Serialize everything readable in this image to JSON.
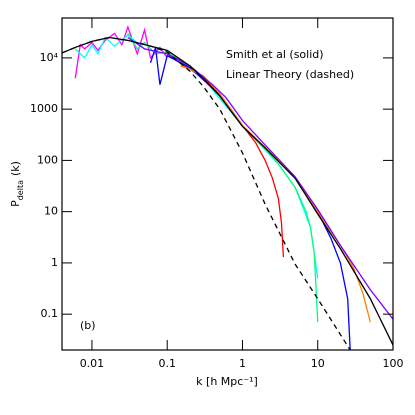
{
  "chart_data": {
    "type": "line",
    "x_label": "k [h Mpc⁻¹]",
    "y_label": "P",
    "y_label_sub": "delta",
    "y_label_suffix": "(k)",
    "annotations": [
      "Smith et al (solid)",
      "Linear Theory (dashed)",
      "(b)"
    ],
    "log_x": true,
    "log_y": true,
    "xlim": [
      0.004,
      100
    ],
    "ylim": [
      0.02,
      60000
    ],
    "xticks": [
      0.01,
      0.1,
      1,
      10,
      100
    ],
    "yticks": [
      0.1,
      1,
      10,
      100,
      1000,
      {
        "value": 10000,
        "label": "10⁴"
      }
    ],
    "series": [
      {
        "color": "#ff00ff",
        "x": [
          0.006,
          0.007,
          0.008,
          0.01,
          0.012,
          0.015,
          0.02,
          0.025,
          0.03,
          0.04,
          0.05,
          0.06,
          0.08,
          0.1
        ],
        "values": [
          4000,
          18000,
          15000,
          20000,
          14000,
          22000,
          30000,
          18000,
          40000,
          12000,
          35000,
          10000,
          16000,
          10000
        ]
      },
      {
        "color": "#00ffff",
        "x": [
          0.006,
          0.008,
          0.01,
          0.012,
          0.015,
          0.02,
          0.03,
          0.05,
          0.1,
          0.3,
          1,
          3,
          5,
          8,
          10
        ],
        "values": [
          15000,
          10000,
          18000,
          12000,
          25000,
          17000,
          28000,
          15000,
          12000,
          4000,
          470,
          85,
          30,
          5,
          0.5
        ]
      },
      {
        "color": "#00ff80",
        "x": [
          0.03,
          0.04,
          0.05,
          0.07,
          0.1,
          0.2,
          0.3,
          0.5,
          1,
          2,
          3,
          5,
          7,
          8,
          9,
          10
        ],
        "values": [
          30000,
          15000,
          20000,
          12000,
          13000,
          6500,
          4000,
          1900,
          470,
          170,
          85,
          30,
          10,
          5,
          1.5,
          0.07
        ]
      },
      {
        "color": "#ff0000",
        "x": [
          0.1,
          0.13,
          0.2,
          0.3,
          0.5,
          0.7,
          1,
          1.5,
          2,
          2.5,
          3,
          3.3,
          3.5
        ],
        "values": [
          12000,
          9000,
          6000,
          4200,
          1900,
          1000,
          480,
          220,
          100,
          45,
          18,
          6,
          1.3
        ]
      },
      {
        "color": "#0000ff",
        "x": [
          0.06,
          0.07,
          0.08,
          0.1,
          0.2,
          0.5,
          1,
          2,
          5,
          10,
          15,
          20,
          25,
          27
        ],
        "values": [
          8000,
          16000,
          3000,
          11000,
          6500,
          1900,
          470,
          180,
          45,
          10,
          3,
          1,
          0.2,
          0.02
        ]
      },
      {
        "color": "#ff8000",
        "x": [
          0.15,
          0.2,
          0.3,
          0.5,
          1,
          2,
          5,
          10,
          20,
          30,
          40,
          50
        ],
        "values": [
          7000,
          6000,
          4500,
          2000,
          480,
          180,
          46,
          10,
          2.2,
          0.8,
          0.25,
          0.07
        ]
      },
      {
        "color": "#8000ff",
        "x": [
          0.03,
          0.05,
          0.1,
          0.2,
          0.4,
          0.6,
          1,
          2,
          5,
          10,
          20,
          50,
          100
        ],
        "values": [
          25000,
          15000,
          12000,
          7000,
          3000,
          1700,
          600,
          200,
          48,
          11,
          2.2,
          0.3,
          0.08
        ]
      },
      {
        "color": "#000000",
        "x": [
          0.004,
          0.006,
          0.01,
          0.017,
          0.03,
          0.06,
          0.1,
          0.2,
          0.3,
          0.5,
          1,
          2,
          5,
          10,
          20,
          50,
          100
        ],
        "values": [
          12500,
          16000,
          21000,
          25000,
          22000,
          17000,
          14000,
          7000,
          4000,
          1800,
          460,
          175,
          45,
          9,
          1.9,
          0.2,
          0.025
        ]
      },
      {
        "color": "#000000",
        "dashed": true,
        "x": [
          0.004,
          0.006,
          0.01,
          0.017,
          0.03,
          0.06,
          0.1,
          0.2,
          0.3,
          0.5,
          1,
          2,
          5,
          10,
          20,
          27
        ],
        "values": [
          12500,
          16000,
          21000,
          25000,
          22000,
          17000,
          13000,
          5500,
          2800,
          1000,
          140,
          14,
          0.95,
          0.2,
          0.04,
          0.02
        ]
      }
    ]
  }
}
